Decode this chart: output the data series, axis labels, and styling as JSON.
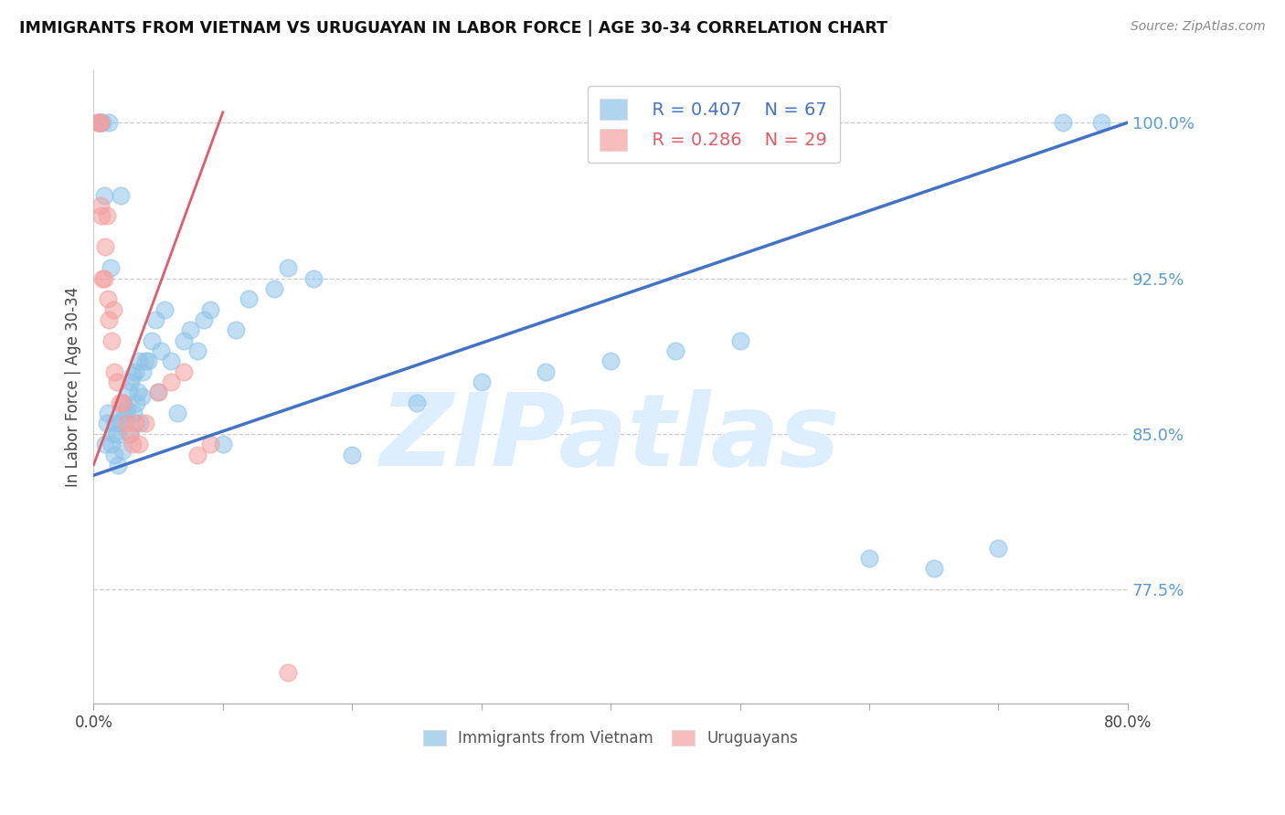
{
  "title": "IMMIGRANTS FROM VIETNAM VS URUGUAYAN IN LABOR FORCE | AGE 30-34 CORRELATION CHART",
  "source": "Source: ZipAtlas.com",
  "ylabel": "In Labor Force | Age 30-34",
  "legend_blue_r": "R = 0.407",
  "legend_blue_n": "N = 67",
  "legend_pink_r": "R = 0.286",
  "legend_pink_n": "N = 29",
  "blue_color": "#8ec4e8",
  "pink_color": "#f4a0a0",
  "blue_line_color": "#4472c4",
  "pink_line_color": "#e05c6a",
  "watermark": "ZIPatlas",
  "watermark_color": "#ddeeff",
  "xmin": 0.0,
  "xmax": 80.0,
  "ymin": 72.0,
  "ymax": 102.5,
  "yticks": [
    77.5,
    85.0,
    92.5,
    100.0
  ],
  "ytick_labels": [
    "77.5%",
    "85.0%",
    "92.5%",
    "100.0%"
  ],
  "blue_line_x0": 0.0,
  "blue_line_y0": 83.0,
  "blue_line_x1": 80.0,
  "blue_line_y1": 100.0,
  "pink_line_x0": 0.0,
  "pink_line_y0": 83.5,
  "pink_line_x1": 10.0,
  "pink_line_y1": 100.5,
  "blue_scatter_x": [
    0.3,
    0.5,
    0.5,
    0.7,
    0.8,
    0.9,
    1.0,
    1.1,
    1.2,
    1.3,
    1.4,
    1.5,
    1.6,
    1.7,
    1.8,
    1.9,
    2.0,
    2.1,
    2.2,
    2.3,
    2.4,
    2.5,
    2.6,
    2.7,
    2.8,
    2.9,
    3.0,
    3.1,
    3.2,
    3.3,
    3.4,
    3.5,
    3.6,
    3.7,
    3.8,
    4.0,
    4.2,
    4.5,
    4.8,
    5.0,
    5.2,
    5.5,
    6.0,
    6.5,
    7.0,
    7.5,
    8.0,
    8.5,
    9.0,
    10.0,
    11.0,
    12.0,
    14.0,
    15.0,
    17.0,
    20.0,
    25.0,
    30.0,
    35.0,
    40.0,
    45.0,
    50.0,
    60.0,
    65.0,
    70.0,
    75.0,
    78.0
  ],
  "blue_scatter_y": [
    100.0,
    100.0,
    100.0,
    100.0,
    96.5,
    84.5,
    85.5,
    86.0,
    100.0,
    93.0,
    84.5,
    85.0,
    84.0,
    85.5,
    85.0,
    83.5,
    85.5,
    96.5,
    84.2,
    86.5,
    85.8,
    86.0,
    86.2,
    87.0,
    85.0,
    87.5,
    87.8,
    86.0,
    88.0,
    86.5,
    87.0,
    88.5,
    85.5,
    86.8,
    88.0,
    88.5,
    88.5,
    89.5,
    90.5,
    87.0,
    89.0,
    91.0,
    88.5,
    86.0,
    89.5,
    90.0,
    89.0,
    90.5,
    91.0,
    84.5,
    90.0,
    91.5,
    92.0,
    93.0,
    92.5,
    84.0,
    86.5,
    87.5,
    88.0,
    88.5,
    89.0,
    89.5,
    79.0,
    78.5,
    79.5,
    100.0,
    100.0
  ],
  "pink_scatter_x": [
    0.3,
    0.4,
    0.5,
    0.5,
    0.6,
    0.7,
    0.8,
    0.9,
    1.0,
    1.1,
    1.2,
    1.4,
    1.5,
    1.6,
    1.8,
    2.0,
    2.2,
    2.5,
    2.8,
    3.0,
    3.2,
    3.5,
    4.0,
    5.0,
    6.0,
    7.0,
    8.0,
    9.0,
    15.0
  ],
  "pink_scatter_y": [
    100.0,
    100.0,
    100.0,
    96.0,
    95.5,
    92.5,
    92.5,
    94.0,
    95.5,
    91.5,
    90.5,
    89.5,
    91.0,
    88.0,
    87.5,
    86.5,
    86.5,
    85.5,
    85.0,
    84.5,
    85.5,
    84.5,
    85.5,
    87.0,
    87.5,
    88.0,
    84.0,
    84.5,
    73.5
  ]
}
